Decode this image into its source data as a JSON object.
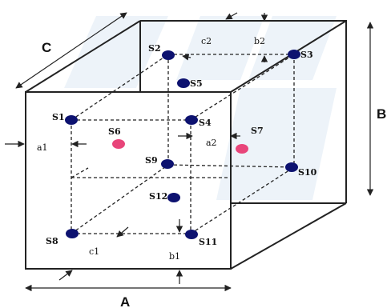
{
  "dimensions": {
    "A": "A",
    "B": "B",
    "C": "C"
  },
  "gaps": {
    "a1": "a1",
    "a2": "a2",
    "b1": "b1",
    "b2": "b2",
    "c1": "c1",
    "c2": "c2"
  },
  "sensors": {
    "S1": "S1",
    "S2": "S2",
    "S3": "S3",
    "S4": "S4",
    "S5": "S5",
    "S6": "S6",
    "S7": "S7",
    "S8": "S8",
    "S9": "S9",
    "S10": "S10",
    "S11": "S11",
    "S12": "S12"
  },
  "colors": {
    "sensor_dark": "#0d1270",
    "sensor_pink": "#e8457a",
    "line": "#222222"
  }
}
